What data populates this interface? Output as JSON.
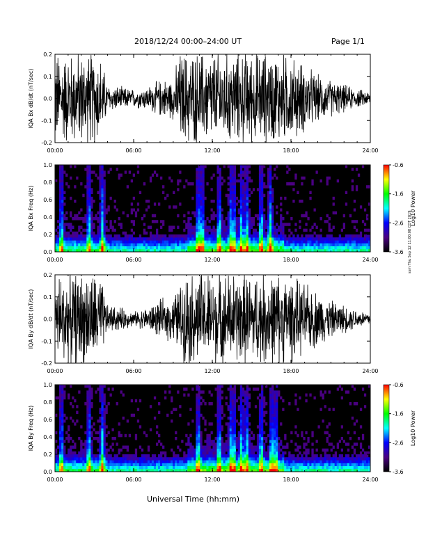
{
  "header": {
    "date_range": "2018/12/24  00:00–24:00 UT",
    "page": "Page 1/1"
  },
  "footer": {
    "xaxis_title": "Universal Time (hh:mm)"
  },
  "stamp": "ssm Thu Sep 12 11:00:08 CDT 2019",
  "colorbar": {
    "ticks": [
      "-0.6",
      "-1.6",
      "-2.6",
      "-3.6"
    ],
    "label": "Log10 Power",
    "colors": [
      "#000000",
      "#4b0082",
      "#0000ff",
      "#00ffff",
      "#00ff00",
      "#ffff00",
      "#ff0000"
    ]
  },
  "chart_data": [
    {
      "type": "line",
      "id": "bx-timeseries",
      "ylabel": "IQA Bx dB/dt (nT/sec)",
      "x_ticks": [
        "00:00",
        "06:00",
        "12:00",
        "18:00",
        "24:00"
      ],
      "y_ticks": [
        "0.2",
        "0.1",
        "0.0",
        "-0.1",
        "-0.2"
      ],
      "ylim": [
        -0.2,
        0.2
      ],
      "xlim_hours": [
        0,
        24
      ],
      "envelope_hours": [
        0,
        1,
        2,
        3,
        3.5,
        4,
        5,
        6,
        7,
        8,
        9,
        9.5,
        10,
        11,
        12,
        13,
        14,
        15,
        16,
        17,
        18,
        19,
        20,
        21,
        22,
        23,
        24
      ],
      "envelope_amp": [
        0.2,
        0.2,
        0.2,
        0.2,
        0.18,
        0.06,
        0.05,
        0.04,
        0.05,
        0.08,
        0.09,
        0.2,
        0.2,
        0.2,
        0.2,
        0.2,
        0.2,
        0.2,
        0.2,
        0.2,
        0.18,
        0.15,
        0.1,
        0.08,
        0.06,
        0.04,
        0.03
      ]
    },
    {
      "type": "heatmap",
      "id": "bx-spectrogram",
      "ylabel": "IQA Bx Freq (Hz)",
      "x_ticks": [
        "00:00",
        "06:00",
        "12:00",
        "18:00",
        "24:00"
      ],
      "y_ticks": [
        "1.0",
        "0.8",
        "0.6",
        "0.4",
        "0.2",
        "0.0"
      ],
      "ylim": [
        0,
        1.0
      ],
      "zlim": [
        -3.6,
        -0.6
      ],
      "zlabel": "Log10 Power",
      "burst_hours": [
        0.5,
        2.6,
        3.6,
        10.9,
        11.2,
        12.5,
        13.4,
        13.6,
        14.2,
        14.6,
        15.7,
        16.4
      ]
    },
    {
      "type": "line",
      "id": "by-timeseries",
      "ylabel": "IQA By dB/dt (nT/sec)",
      "x_ticks": [
        "00:00",
        "06:00",
        "12:00",
        "18:00",
        "24:00"
      ],
      "y_ticks": [
        "0.2",
        "0.1",
        "0.0",
        "-0.1",
        "-0.2"
      ],
      "ylim": [
        -0.2,
        0.2
      ],
      "xlim_hours": [
        0,
        24
      ],
      "envelope_hours": [
        0,
        1,
        2,
        3,
        3.5,
        4,
        5,
        6,
        7,
        8,
        9,
        9.5,
        10,
        11,
        12,
        13,
        14,
        15,
        16,
        17,
        18,
        19,
        20,
        21,
        22,
        23,
        24
      ],
      "envelope_amp": [
        0.2,
        0.2,
        0.2,
        0.2,
        0.18,
        0.06,
        0.05,
        0.03,
        0.05,
        0.08,
        0.1,
        0.15,
        0.2,
        0.2,
        0.2,
        0.2,
        0.2,
        0.2,
        0.2,
        0.2,
        0.18,
        0.15,
        0.12,
        0.08,
        0.06,
        0.04,
        0.03
      ]
    },
    {
      "type": "heatmap",
      "id": "by-spectrogram",
      "ylabel": "IQA By Freq (Hz)",
      "x_ticks": [
        "00:00",
        "06:00",
        "12:00",
        "18:00",
        "24:00"
      ],
      "y_ticks": [
        "1.0",
        "0.8",
        "0.6",
        "0.4",
        "0.2",
        "0.0"
      ],
      "ylim": [
        0,
        1.0
      ],
      "zlim": [
        -3.6,
        -0.6
      ],
      "zlabel": "Log10 Power",
      "burst_hours": [
        0.5,
        2.6,
        3.6,
        10.9,
        12.5,
        13.4,
        13.6,
        14.2,
        14.6,
        15.7,
        16.5,
        16.8
      ]
    }
  ]
}
